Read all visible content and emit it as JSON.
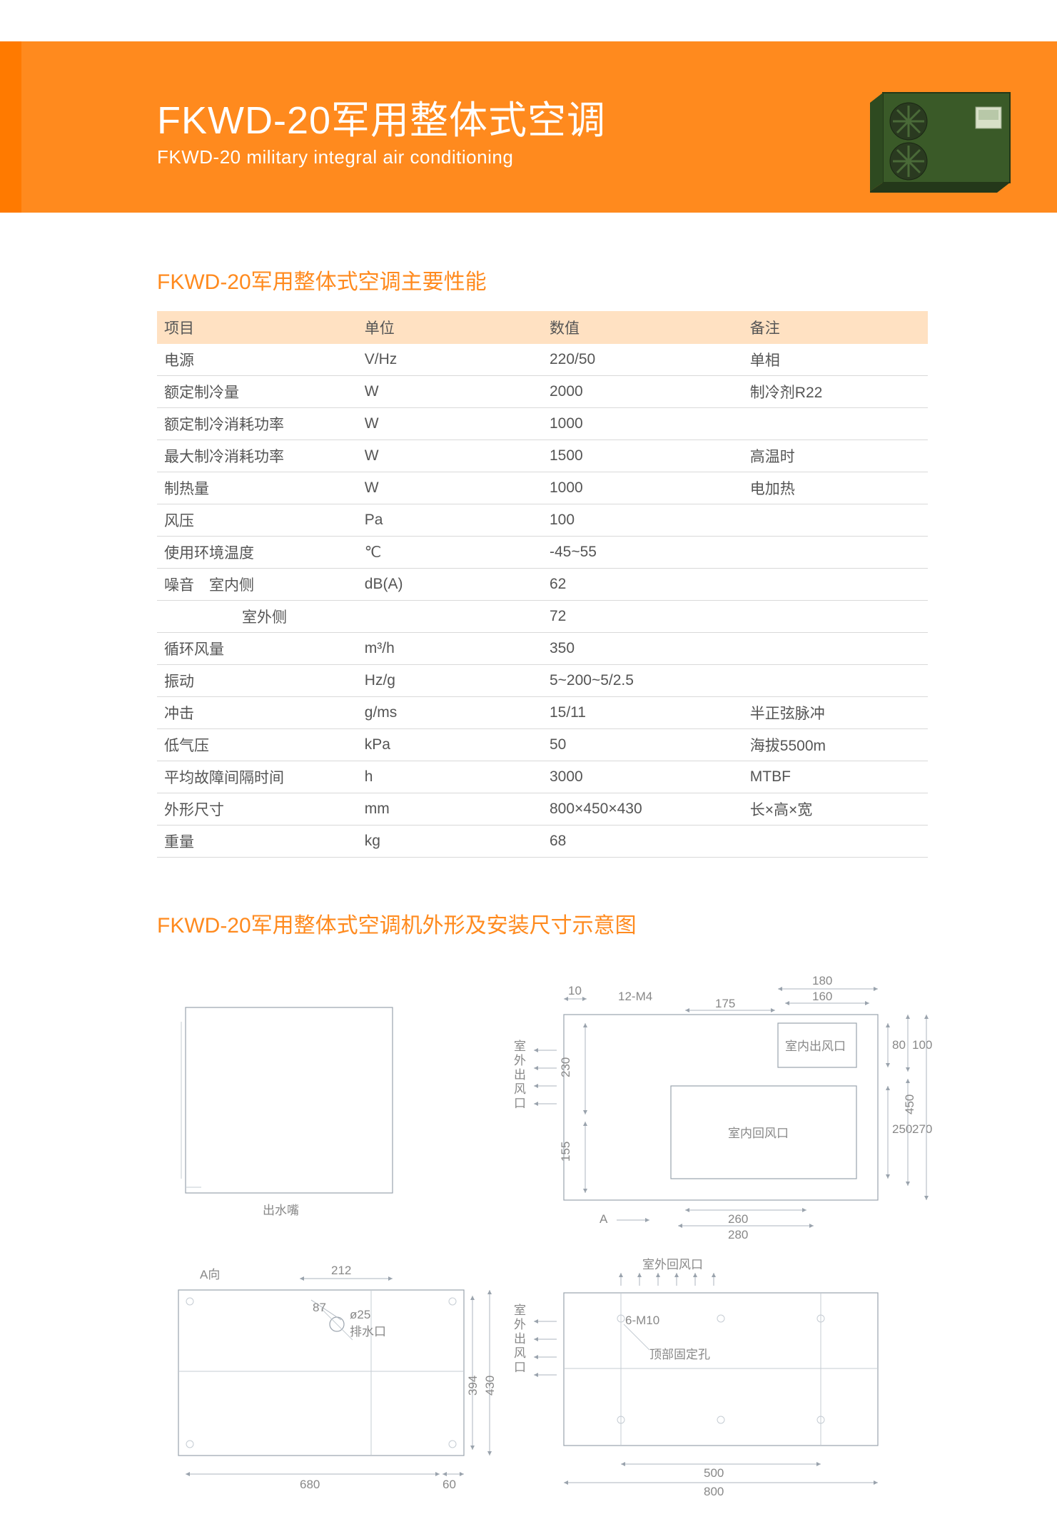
{
  "banner": {
    "title_cn": "FKWD-20军用整体式空调",
    "title_en": "FKWD-20 military integral air conditioning",
    "bg_color": "#ff8a1e",
    "text_color": "#ffffff",
    "product": {
      "body_color": "#3a5a28",
      "fan_color": "#2a3a20",
      "panel_color": "#d8e0c8"
    }
  },
  "section1_title": "FKWD-20军用整体式空调主要性能",
  "table": {
    "header_bg": "#ffe1c2",
    "cols": [
      "项目",
      "单位",
      "数值",
      "备注"
    ],
    "rows": [
      {
        "c1": "电源",
        "c2": "V/Hz",
        "c3": "220/50",
        "c4": "单相"
      },
      {
        "c1": "额定制冷量",
        "c2": "W",
        "c3": "2000",
        "c4": "制冷剂R22"
      },
      {
        "c1": "额定制冷消耗功率",
        "c2": "W",
        "c3": "1000",
        "c4": ""
      },
      {
        "c1": "最大制冷消耗功率",
        "c2": "W",
        "c3": "1500",
        "c4": "高温时"
      },
      {
        "c1": "制热量",
        "c2": "W",
        "c3": "1000",
        "c4": "电加热"
      },
      {
        "c1": "风压",
        "c2": "Pa",
        "c3": "100",
        "c4": ""
      },
      {
        "c1": "使用环境温度",
        "c2": "℃",
        "c3": "-45~55",
        "c4": ""
      },
      {
        "c1": "噪音　室内侧",
        "c2": "dB(A)",
        "c3": "62",
        "c4": ""
      },
      {
        "c1": "　　　室外侧",
        "c2": "",
        "c3": "72",
        "c4": "",
        "indent": true
      },
      {
        "c1": "循环风量",
        "c2": "m³/h",
        "c3": "350",
        "c4": ""
      },
      {
        "c1": "振动",
        "c2": "Hz/g",
        "c3": "5~200~5/2.5",
        "c4": ""
      },
      {
        "c1": "冲击",
        "c2": "g/ms",
        "c3": "15/11",
        "c4": "半正弦脉冲"
      },
      {
        "c1": "低气压",
        "c2": "kPa",
        "c3": "50",
        "c4": "海拔5500m"
      },
      {
        "c1": "平均故障间隔时间",
        "c2": "h",
        "c3": "3000",
        "c4": "MTBF"
      },
      {
        "c1": "外形尺寸",
        "c2": "mm",
        "c3": "800×450×430",
        "c4": "长×高×宽"
      },
      {
        "c1": "重量",
        "c2": "kg",
        "c3": "68",
        "c4": ""
      }
    ]
  },
  "section2_title": "FKWD-20军用整体式空调机外形及安装尺寸示意图",
  "diagram": {
    "labels": {
      "outlet_nozzle": "出水嘴",
      "a_view": "A向",
      "drain": "排水口",
      "outdoor_vent_v": "室外出风口",
      "indoor_out": "室内出风口",
      "indoor_return": "室内回风口",
      "outdoor_return": "室外回风口",
      "top_holes": "顶部固定孔",
      "m4": "12-M4",
      "m10": "6-M10",
      "phi25": "ø25",
      "A": "A"
    },
    "dims": {
      "d10": "10",
      "d180": "180",
      "d160": "160",
      "d175": "175",
      "d80": "80",
      "d100": "100",
      "d230": "230",
      "d155": "155",
      "d250": "250",
      "d270": "270",
      "d450": "450",
      "d260": "260",
      "d280": "280",
      "d212": "212",
      "d87": "87",
      "d394": "394",
      "d430": "430",
      "d680": "680",
      "d60": "60",
      "d500": "500",
      "d800": "800"
    },
    "colors": {
      "line": "#9aa3ad",
      "thin": "#c5ccd3",
      "text": "#888888"
    }
  }
}
